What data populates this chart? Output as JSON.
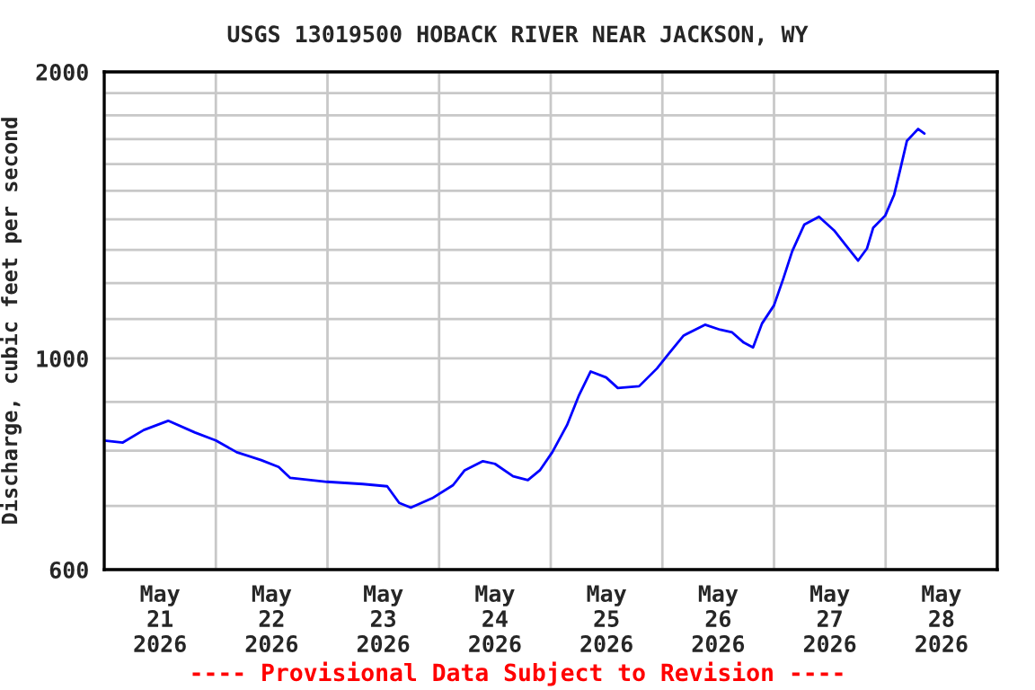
{
  "chart_data": {
    "type": "line",
    "title": "USGS 13019500 HOBACK RIVER NEAR JACKSON, WY",
    "ylabel": "Discharge, cubic feet per second",
    "annotations": [
      "---- Provisional Data Subject to Revision ----"
    ],
    "log": "y",
    "grid": true,
    "line_style": "solid",
    "marker": "none",
    "xlim": [
      "2026-05-21T00:00",
      "2026-05-29T00:00"
    ],
    "xticks": [
      {
        "value": "2026-05-21T00:00",
        "label": null
      },
      {
        "value": "2026-05-21T12:00",
        "label": "May\n21\n2026"
      },
      {
        "value": "2026-05-22T00:00",
        "label": null
      },
      {
        "value": "2026-05-22T12:00",
        "label": "May\n22\n2026"
      },
      {
        "value": "2026-05-23T00:00",
        "label": null
      },
      {
        "value": "2026-05-23T12:00",
        "label": "May\n23\n2026"
      },
      {
        "value": "2026-05-24T00:00",
        "label": null
      },
      {
        "value": "2026-05-24T12:00",
        "label": "May\n24\n2026"
      },
      {
        "value": "2026-05-25T00:00",
        "label": null
      },
      {
        "value": "2026-05-25T12:00",
        "label": "May\n25\n2026"
      },
      {
        "value": "2026-05-26T00:00",
        "label": null
      },
      {
        "value": "2026-05-26T12:00",
        "label": "May\n26\n2026"
      },
      {
        "value": "2026-05-27T00:00",
        "label": null
      },
      {
        "value": "2026-05-27T12:00",
        "label": "May\n27\n2026"
      },
      {
        "value": "2026-05-28T00:00",
        "label": null
      },
      {
        "value": "2026-05-28T12:00",
        "label": "May\n28\n2026"
      },
      {
        "value": "2026-05-29T00:00",
        "label": null
      }
    ],
    "ylim": [
      600,
      2000
    ],
    "yticks": [
      600,
      {
        "value": 700,
        "label": null
      },
      {
        "value": 800,
        "label": null
      },
      {
        "value": 900,
        "label": null
      },
      1000,
      {
        "value": 1100,
        "label": null
      },
      {
        "value": 1200,
        "label": null
      },
      {
        "value": 1300,
        "label": null
      },
      {
        "value": 1400,
        "label": null
      },
      {
        "value": 1500,
        "label": null
      },
      {
        "value": 1600,
        "label": null
      },
      {
        "value": 1700,
        "label": null
      },
      {
        "value": 1800,
        "label": null
      },
      {
        "value": 1900,
        "label": null
      },
      2000
    ],
    "x": [
      "2026-05-21T00:00",
      "2026-05-21T04:00",
      "2026-05-21T08:30",
      "2026-05-21T13:45",
      "2026-05-21T19:30",
      "2026-05-22T00:00",
      "2026-05-22T04:30",
      "2026-05-22T09:45",
      "2026-05-22T13:30",
      "2026-05-22T16:00",
      "2026-05-22T23:55",
      "2026-05-23T07:35",
      "2026-05-23T12:50",
      "2026-05-23T15:25",
      "2026-05-23T17:55",
      "2026-05-23T22:30",
      "2026-05-24T03:00",
      "2026-05-24T05:30",
      "2026-05-24T09:25",
      "2026-05-24T12:00",
      "2026-05-24T15:55",
      "2026-05-24T19:05",
      "2026-05-24T21:40",
      "2026-05-25T00:20",
      "2026-05-25T03:30",
      "2026-05-25T06:05",
      "2026-05-25T08:35",
      "2026-05-25T11:55",
      "2026-05-25T14:25",
      "2026-05-25T19:00",
      "2026-05-25T22:50",
      "2026-05-26T01:25",
      "2026-05-26T04:35",
      "2026-05-26T09:10",
      "2026-05-26T12:25",
      "2026-05-26T15:00",
      "2026-05-26T17:30",
      "2026-05-26T19:30",
      "2026-05-26T21:25",
      "2026-05-27T00:00",
      "2026-05-27T02:00",
      "2026-05-27T03:55",
      "2026-05-27T06:30",
      "2026-05-27T09:40",
      "2026-05-27T12:55",
      "2026-05-27T15:30",
      "2026-05-27T18:05",
      "2026-05-27T20:00",
      "2026-05-27T21:20",
      "2026-05-27T23:55",
      "2026-05-28T01:50",
      "2026-05-28T03:05",
      "2026-05-28T04:35",
      "2026-05-28T07:00",
      "2026-05-28T08:20"
    ],
    "series": [
      {
        "color": "#0000ff",
        "values": [
          820,
          816,
          841,
          860,
          836,
          820,
          797,
          782,
          769,
          749,
          742,
          738,
          734,
          705,
          697,
          713,
          736,
          763,
          780,
          775,
          752,
          745,
          763,
          797,
          851,
          915,
          969,
          955,
          931,
          935,
          976,
          1012,
          1057,
          1085,
          1072,
          1065,
          1039,
          1027,
          1088,
          1137,
          1213,
          1296,
          1382,
          1409,
          1363,
          1314,
          1267,
          1305,
          1372,
          1413,
          1486,
          1575,
          1693,
          1742,
          1723
        ]
      }
    ]
  }
}
